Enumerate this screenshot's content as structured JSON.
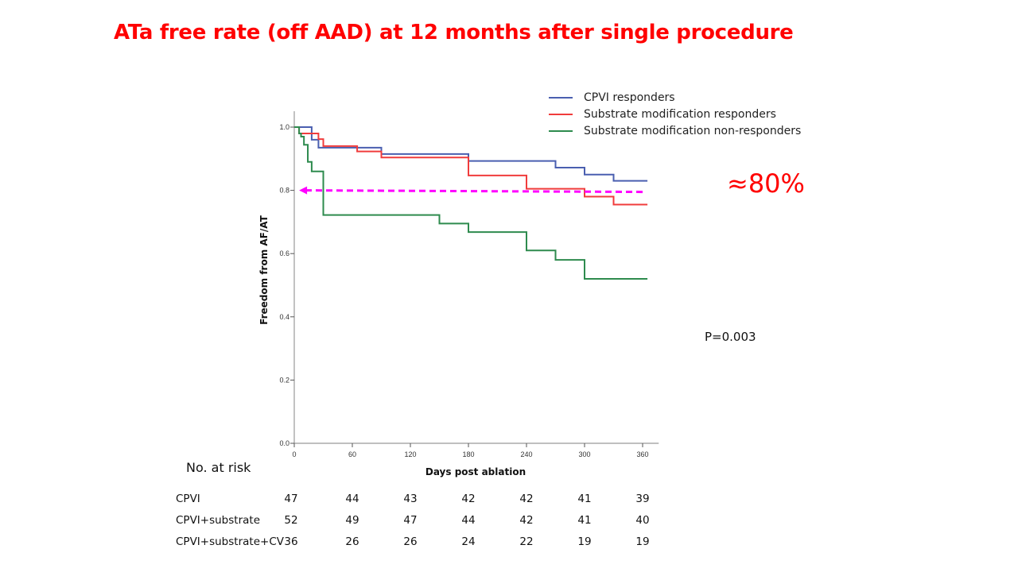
{
  "slide": {
    "title": "ATa free rate (off AAD) at 12 months after single procedure",
    "annotation": "≈80%",
    "p_value": "P=0.003",
    "annotation_color": "#ff0000"
  },
  "chart_data": {
    "type": "line",
    "subtype": "kaplan-meier-step",
    "title": "ATa free rate (off AAD) at 12 months after single procedure",
    "xlabel": "Days post ablation",
    "ylabel": "Freedom from AF/AT",
    "xlim": [
      0,
      375
    ],
    "ylim": [
      0.0,
      1.0
    ],
    "x_ticks": [
      0,
      60,
      120,
      180,
      240,
      300,
      360
    ],
    "y_ticks": [
      0.0,
      0.2,
      0.4,
      0.6,
      0.8,
      1.0
    ],
    "y_tick_labels": [
      "0.0",
      "0.2",
      "0.4",
      "0.6",
      "0.8",
      "1.0"
    ],
    "grid": false,
    "legend_position": "top-right",
    "series": [
      {
        "name": "CPVI responders",
        "color": "#4a5fb0",
        "steps": [
          [
            0,
            1.0
          ],
          [
            18,
            0.96
          ],
          [
            25,
            0.935
          ],
          [
            90,
            0.915
          ],
          [
            180,
            0.893
          ],
          [
            270,
            0.872
          ],
          [
            300,
            0.85
          ],
          [
            330,
            0.83
          ],
          [
            365,
            0.83
          ]
        ]
      },
      {
        "name": "Substrate modification responders",
        "color": "#f03c3c",
        "steps": [
          [
            0,
            1.0
          ],
          [
            5,
            0.98
          ],
          [
            25,
            0.962
          ],
          [
            30,
            0.94
          ],
          [
            65,
            0.923
          ],
          [
            90,
            0.904
          ],
          [
            180,
            0.847
          ],
          [
            240,
            0.805
          ],
          [
            300,
            0.78
          ],
          [
            330,
            0.755
          ],
          [
            365,
            0.755
          ]
        ]
      },
      {
        "name": "Substrate modification non-responders",
        "color": "#2e8b4e",
        "steps": [
          [
            0,
            1.0
          ],
          [
            5,
            0.98
          ],
          [
            7,
            0.97
          ],
          [
            10,
            0.944
          ],
          [
            14,
            0.89
          ],
          [
            18,
            0.86
          ],
          [
            30,
            0.722
          ],
          [
            150,
            0.695
          ],
          [
            180,
            0.668
          ],
          [
            240,
            0.61
          ],
          [
            270,
            0.58
          ],
          [
            300,
            0.52
          ],
          [
            365,
            0.52
          ]
        ]
      }
    ],
    "annotations": [
      {
        "type": "dashed-arrow",
        "color": "#ff00ff",
        "from": [
          360,
          0.795
        ],
        "to": [
          5,
          0.8
        ],
        "label": "≈80%"
      },
      {
        "type": "text",
        "text": "P=0.003"
      }
    ]
  },
  "risk_table": {
    "title": "No. at risk",
    "timepoints": [
      0,
      60,
      120,
      180,
      240,
      300,
      360
    ],
    "rows": [
      {
        "label": "CPVI",
        "values": [
          "47",
          "44",
          "43",
          "42",
          "42",
          "41",
          "39"
        ]
      },
      {
        "label": "CPVI+substrate",
        "values": [
          "52",
          "49",
          "47",
          "44",
          "42",
          "41",
          "40"
        ]
      },
      {
        "label": "CPVI+substrate+CV",
        "values": [
          "36",
          "26",
          "26",
          "24",
          "22",
          "19",
          "19"
        ]
      }
    ]
  }
}
